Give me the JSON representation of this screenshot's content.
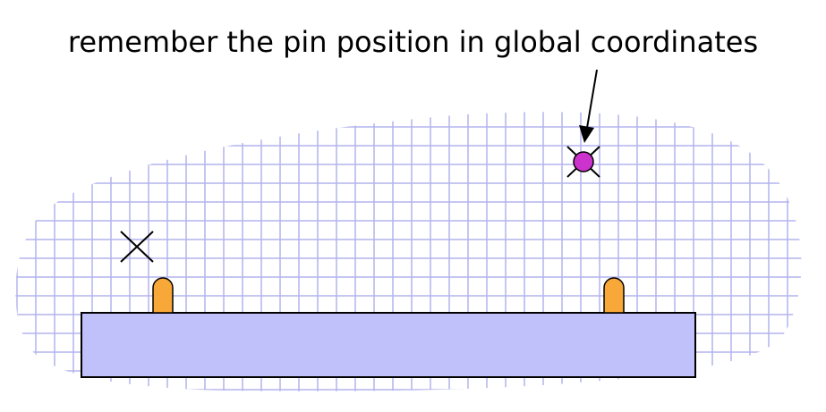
{
  "annotation": {
    "text": "remember the pin position in global coordinates"
  },
  "colors": {
    "grid": "#b4b4ee",
    "body": "#c0c0fa",
    "pin": "#f8a838",
    "marker": "#cc33cc",
    "stroke": "#000000",
    "background": "#ffffff"
  },
  "elements": {
    "grid_region": "grid-region",
    "component_body": "component-body",
    "pins": [
      "pin-left",
      "pin-right"
    ],
    "cross_markers": [
      "cross-marker-left",
      "cross-marker-global-pin"
    ],
    "global_pin_marker": "global-pin-marker",
    "arrow": "annotation-arrow"
  }
}
